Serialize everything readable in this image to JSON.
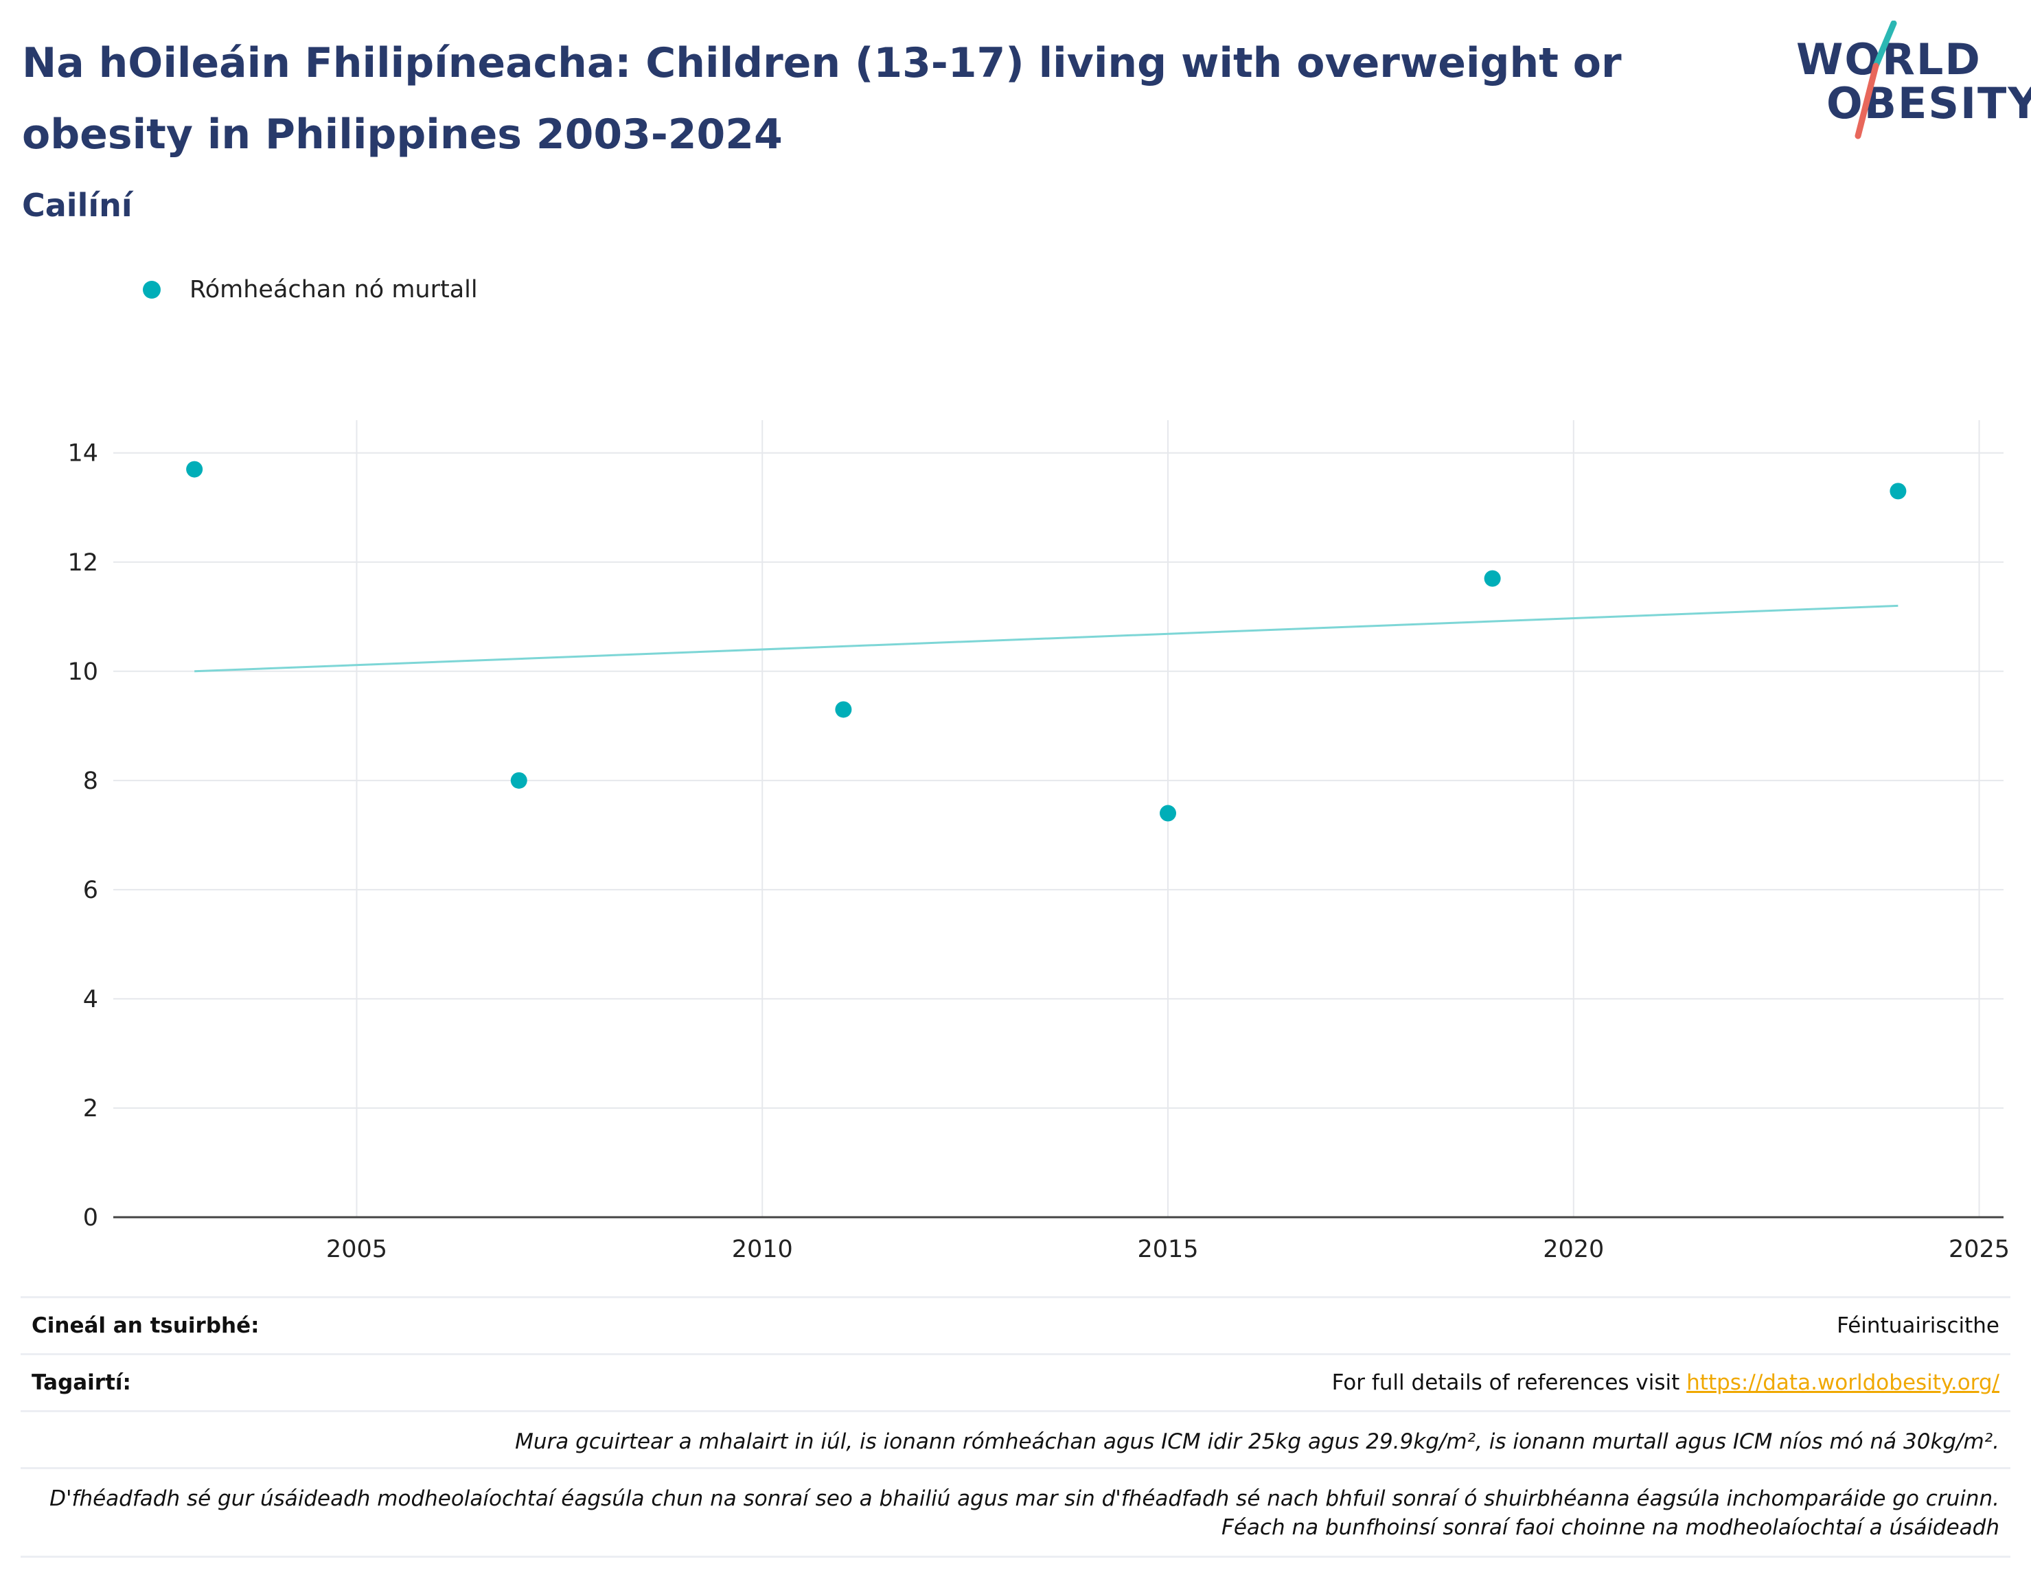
{
  "header": {
    "title": "Na hOileáin Fhilipíneacha: Children (13-17) living with overweight or obesity in Philippines 2003-2024",
    "subtitle": "Cailíní"
  },
  "logo": {
    "line1": "WORLD",
    "line2": "OBESITY",
    "colors": {
      "text": "#283a6b",
      "slash_top": "#2bb7b3",
      "slash_bottom": "#e8675b"
    }
  },
  "legend": {
    "label": "Rómheáchan nó murtall",
    "color": "#00aeb8"
  },
  "chart_data": {
    "type": "scatter",
    "series": [
      {
        "name": "Rómheáchan nó murtall",
        "color": "#00aeb8",
        "x": [
          2003,
          2007,
          2011,
          2015,
          2019,
          2024
        ],
        "y": [
          13.7,
          8.0,
          9.3,
          7.4,
          11.7,
          13.3
        ]
      }
    ],
    "trendline": {
      "color": "#7dd6d6",
      "x": [
        2003,
        2024
      ],
      "y": [
        10.0,
        11.2
      ]
    },
    "xlim": [
      2002,
      2025.3
    ],
    "ylim": [
      0,
      14.6
    ],
    "x_ticks": [
      2005,
      2010,
      2015,
      2020,
      2025
    ],
    "y_ticks": [
      0,
      2,
      4,
      6,
      8,
      10,
      12,
      14
    ],
    "grid": true,
    "legend_position": "top-left"
  },
  "footer": {
    "survey_label": "Cineál an tsuirbhé:",
    "survey_value": "Féintuairiscithe",
    "refs_label": "Tagairtí:",
    "refs_text": "For full details of references visit ",
    "refs_link": "https://data.worldobesity.org/",
    "note1": "Mura gcuirtear a mhalairt in iúl, is ionann rómheáchan agus ICM idir 25kg agus 29.9kg/m², is ionann murtall agus ICM níos mó ná 30kg/m².",
    "note2a": "D'fhéadfadh sé gur úsáideadh modheolaíochtaí éagsúla chun na sonraí seo a bhailiú agus mar sin d'fhéadfadh sé nach bhfuil sonraí ó shuirbhéanna éagsúla inchomparáide go cruinn.",
    "note2b": "Féach na bunfhoinsí sonraí faoi choinne na modheolaíochtaí a úsáideadh"
  }
}
